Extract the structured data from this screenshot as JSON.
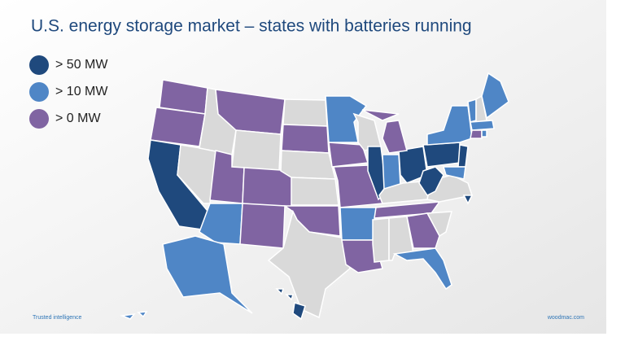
{
  "title": "U.S. energy storage market – states with batteries running",
  "legend": [
    {
      "label": "> 50 MW",
      "color": "#1f497d"
    },
    {
      "label": "> 10 MW",
      "color": "#4f86c6"
    },
    {
      "label": "> 0 MW",
      "color": "#8064a2"
    }
  ],
  "no_data_color": "#d9d9d9",
  "state_levels": [
    2,
    2,
    0,
    null,
    null,
    2,
    null,
    2,
    1,
    2,
    2,
    null,
    2,
    null,
    null,
    2,
    1,
    null,
    2,
    1,
    2,
    null,
    0,
    2,
    1,
    0,
    null,
    2,
    null,
    null,
    2,
    1,
    null,
    2,
    null,
    0,
    0,
    1,
    0,
    1,
    1,
    null,
    1,
    1,
    2,
    1,
    1,
    0,
    0
  ],
  "footer": {
    "left": "Trusted intelligence",
    "right": "woodmac.com"
  }
}
